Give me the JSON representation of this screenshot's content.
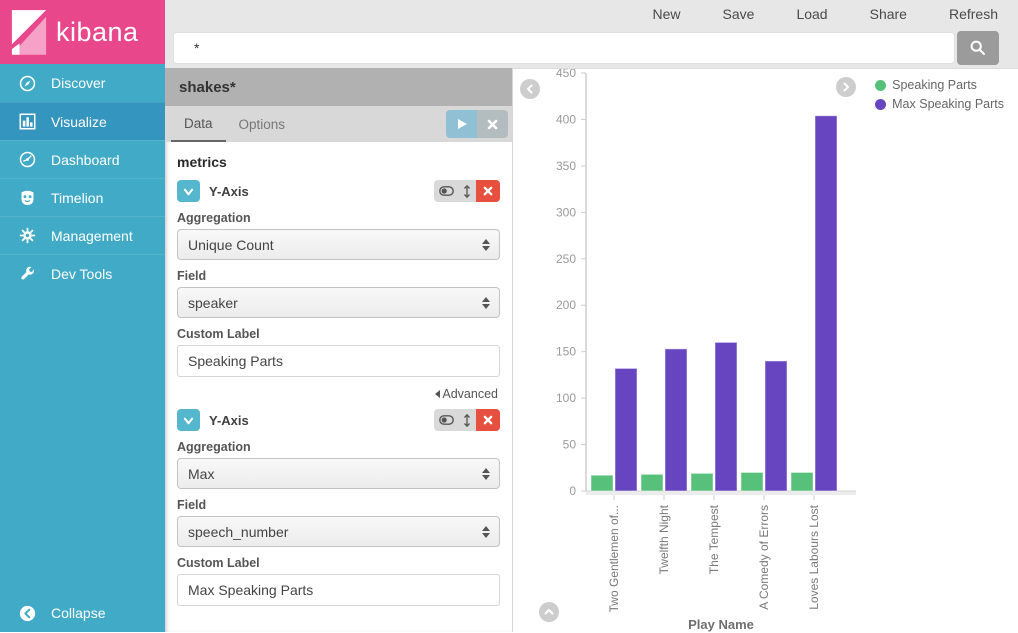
{
  "app": {
    "logo_text": "kibana"
  },
  "topbar": {
    "nav": [
      {
        "label": "New"
      },
      {
        "label": "Save"
      },
      {
        "label": "Load"
      },
      {
        "label": "Share"
      },
      {
        "label": "Refresh"
      }
    ],
    "search": {
      "value": "*"
    }
  },
  "sidebar": {
    "items": [
      {
        "label": "Discover",
        "icon": "compass-icon",
        "active": false
      },
      {
        "label": "Visualize",
        "icon": "bar-chart-icon",
        "active": true
      },
      {
        "label": "Dashboard",
        "icon": "dashboard-icon",
        "active": false
      },
      {
        "label": "Timelion",
        "icon": "timelion-icon",
        "active": false
      },
      {
        "label": "Management",
        "icon": "gear-icon",
        "active": false
      },
      {
        "label": "Dev Tools",
        "icon": "wrench-icon",
        "active": false
      }
    ],
    "collapse_label": "Collapse"
  },
  "config": {
    "index_pattern": "shakes*",
    "tabs": [
      {
        "label": "Data"
      },
      {
        "label": "Options"
      }
    ],
    "metrics_heading": "metrics",
    "advanced_label": "Advanced",
    "aggs": [
      {
        "title": "Y-Axis",
        "aggregation_label": "Aggregation",
        "aggregation": "Unique Count",
        "field_label": "Field",
        "field": "speaker",
        "custom_label_label": "Custom Label",
        "custom_label": "Speaking Parts"
      },
      {
        "title": "Y-Axis",
        "aggregation_label": "Aggregation",
        "aggregation": "Max",
        "field_label": "Field",
        "field": "speech_number",
        "custom_label_label": "Custom Label",
        "custom_label": "Max Speaking Parts"
      }
    ]
  },
  "chart_data": {
    "type": "bar",
    "title": "",
    "xlabel": "Play Name",
    "ylabel": "",
    "ylim": [
      0,
      450
    ],
    "ytick_step": 50,
    "grid": false,
    "legend_position": "top-right",
    "categories": [
      "Two Gentlemen of...",
      "Twelfth Night",
      "The Tempest",
      "A Comedy of Errors",
      "Loves Labours Lost"
    ],
    "series": [
      {
        "name": "Speaking Parts",
        "color": "#57c17b",
        "values": [
          17,
          18,
          19,
          20,
          20
        ]
      },
      {
        "name": "Max Speaking Parts",
        "color": "#6745c1",
        "values": [
          132,
          153,
          160,
          140,
          404
        ]
      }
    ]
  },
  "colors": {
    "brand_pink": "#e8478b",
    "sidebar": "#41abc7",
    "sidebar_active": "#3495be",
    "topbar": "#e7e7e7",
    "header_gray": "#b1b1b1",
    "danger_red": "#e7503e",
    "teal_button": "#55b7cd",
    "bar_green": "#57c17b",
    "bar_purple": "#6745c1"
  }
}
